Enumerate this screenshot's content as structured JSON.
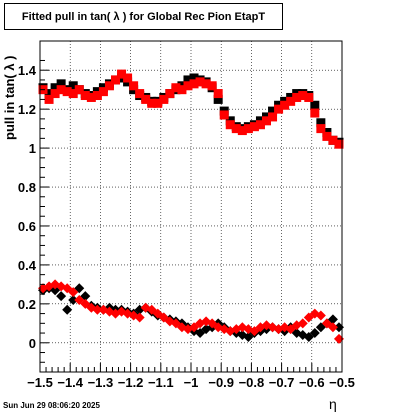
{
  "title": "Fitted pull in tan( λ ) for Global Rec Pion EtapT",
  "footer": "Sun Jun 29 08:06:20 2025",
  "chart_data": {
    "type": "scatter",
    "title": "Fitted pull in tan( λ ) for Global Rec Pion EtapT",
    "xlabel": "η",
    "ylabel": "pull in tan( λ )",
    "xlim": [
      -1.5,
      -0.5
    ],
    "ylim": [
      -0.15,
      1.55
    ],
    "grid": true,
    "x_ticks": [
      "−1.5",
      "−1.4",
      "−1.3",
      "−1.2",
      "−1.1",
      "−1",
      "−0.9",
      "−0.8",
      "−0.7",
      "−0.6",
      "−0.5"
    ],
    "y_ticks": [
      "0",
      "0.2",
      "0.4",
      "0.6",
      "0.8",
      "1",
      "1.2",
      "1.4"
    ],
    "series": [
      {
        "color": "#000000",
        "marker": "square",
        "x": [
          -1.49,
          -1.47,
          -1.45,
          -1.43,
          -1.41,
          -1.39,
          -1.37,
          -1.35,
          -1.33,
          -1.31,
          -1.29,
          -1.27,
          -1.25,
          -1.23,
          -1.21,
          -1.19,
          -1.17,
          -1.15,
          -1.13,
          -1.11,
          -1.09,
          -1.07,
          -1.05,
          -1.03,
          -1.01,
          -0.99,
          -0.97,
          -0.95,
          -0.93,
          -0.91,
          -0.89,
          -0.87,
          -0.85,
          -0.83,
          -0.81,
          -0.79,
          -0.77,
          -0.75,
          -0.73,
          -0.71,
          -0.69,
          -0.67,
          -0.65,
          -0.63,
          -0.61,
          -0.59,
          -0.57,
          -0.55,
          -0.53,
          -0.51
        ],
        "y": [
          1.31,
          1.28,
          1.31,
          1.33,
          1.3,
          1.32,
          1.3,
          1.28,
          1.27,
          1.29,
          1.31,
          1.33,
          1.35,
          1.36,
          1.34,
          1.3,
          1.27,
          1.26,
          1.24,
          1.24,
          1.26,
          1.28,
          1.3,
          1.32,
          1.35,
          1.36,
          1.35,
          1.34,
          1.31,
          1.25,
          1.19,
          1.14,
          1.11,
          1.1,
          1.11,
          1.12,
          1.14,
          1.16,
          1.19,
          1.22,
          1.24,
          1.26,
          1.28,
          1.28,
          1.27,
          1.22,
          1.13,
          1.08,
          1.04,
          1.03
        ]
      },
      {
        "color": "#ff0000",
        "marker": "square",
        "x": [
          -1.49,
          -1.47,
          -1.45,
          -1.43,
          -1.41,
          -1.39,
          -1.37,
          -1.35,
          -1.33,
          -1.31,
          -1.29,
          -1.27,
          -1.25,
          -1.23,
          -1.21,
          -1.19,
          -1.17,
          -1.15,
          -1.13,
          -1.11,
          -1.09,
          -1.07,
          -1.05,
          -1.03,
          -1.01,
          -0.99,
          -0.97,
          -0.95,
          -0.93,
          -0.91,
          -0.89,
          -0.87,
          -0.85,
          -0.83,
          -0.81,
          -0.79,
          -0.77,
          -0.75,
          -0.73,
          -0.71,
          -0.69,
          -0.67,
          -0.65,
          -0.63,
          -0.61,
          -0.59,
          -0.57,
          -0.55,
          -0.53,
          -0.51
        ],
        "y": [
          1.3,
          1.25,
          1.28,
          1.3,
          1.29,
          1.28,
          1.3,
          1.27,
          1.26,
          1.27,
          1.29,
          1.32,
          1.35,
          1.38,
          1.36,
          1.32,
          1.28,
          1.25,
          1.23,
          1.23,
          1.25,
          1.28,
          1.31,
          1.3,
          1.32,
          1.33,
          1.34,
          1.33,
          1.32,
          1.28,
          1.17,
          1.12,
          1.1,
          1.09,
          1.1,
          1.11,
          1.12,
          1.14,
          1.16,
          1.2,
          1.22,
          1.24,
          1.26,
          1.27,
          1.26,
          1.18,
          1.1,
          1.06,
          1.04,
          1.02
        ]
      },
      {
        "color": "#000000",
        "marker": "diamond",
        "x": [
          -1.49,
          -1.47,
          -1.45,
          -1.43,
          -1.41,
          -1.39,
          -1.37,
          -1.35,
          -1.33,
          -1.31,
          -1.29,
          -1.27,
          -1.25,
          -1.23,
          -1.21,
          -1.19,
          -1.17,
          -1.15,
          -1.13,
          -1.11,
          -1.09,
          -1.07,
          -1.05,
          -1.03,
          -1.01,
          -0.99,
          -0.97,
          -0.95,
          -0.93,
          -0.91,
          -0.89,
          -0.87,
          -0.85,
          -0.83,
          -0.81,
          -0.79,
          -0.77,
          -0.75,
          -0.73,
          -0.71,
          -0.69,
          -0.67,
          -0.65,
          -0.63,
          -0.61,
          -0.59,
          -0.57,
          -0.55,
          -0.53,
          -0.51
        ],
        "y": [
          0.27,
          0.28,
          0.27,
          0.24,
          0.17,
          0.22,
          0.28,
          0.24,
          0.19,
          0.18,
          0.17,
          0.18,
          0.17,
          0.17,
          0.16,
          0.15,
          0.17,
          0.18,
          0.16,
          0.14,
          0.13,
          0.12,
          0.11,
          0.1,
          0.08,
          0.06,
          0.05,
          0.07,
          0.08,
          0.1,
          0.08,
          0.06,
          0.05,
          0.04,
          0.03,
          0.05,
          0.06,
          0.07,
          0.08,
          0.07,
          0.06,
          0.08,
          0.05,
          0.04,
          0.03,
          0.05,
          0.08,
          0.1,
          0.12,
          0.08
        ]
      },
      {
        "color": "#ff0000",
        "marker": "diamond",
        "x": [
          -1.49,
          -1.47,
          -1.45,
          -1.43,
          -1.41,
          -1.39,
          -1.37,
          -1.35,
          -1.33,
          -1.31,
          -1.29,
          -1.27,
          -1.25,
          -1.23,
          -1.21,
          -1.19,
          -1.17,
          -1.15,
          -1.13,
          -1.11,
          -1.09,
          -1.07,
          -1.05,
          -1.03,
          -1.01,
          -0.99,
          -0.97,
          -0.95,
          -0.93,
          -0.91,
          -0.89,
          -0.87,
          -0.85,
          -0.83,
          -0.81,
          -0.79,
          -0.77,
          -0.75,
          -0.73,
          -0.71,
          -0.69,
          -0.67,
          -0.65,
          -0.63,
          -0.61,
          -0.59,
          -0.57,
          -0.55,
          -0.53,
          -0.51
        ],
        "y": [
          0.28,
          0.29,
          0.3,
          0.29,
          0.28,
          0.26,
          0.22,
          0.2,
          0.18,
          0.17,
          0.17,
          0.16,
          0.15,
          0.16,
          0.15,
          0.14,
          0.13,
          0.18,
          0.17,
          0.15,
          0.13,
          0.11,
          0.1,
          0.08,
          0.07,
          0.08,
          0.1,
          0.11,
          0.1,
          0.08,
          0.07,
          0.06,
          0.07,
          0.08,
          0.07,
          0.06,
          0.08,
          0.09,
          0.08,
          0.07,
          0.08,
          0.07,
          0.09,
          0.1,
          0.13,
          0.15,
          0.14,
          0.1,
          0.08,
          0.02
        ]
      }
    ]
  }
}
